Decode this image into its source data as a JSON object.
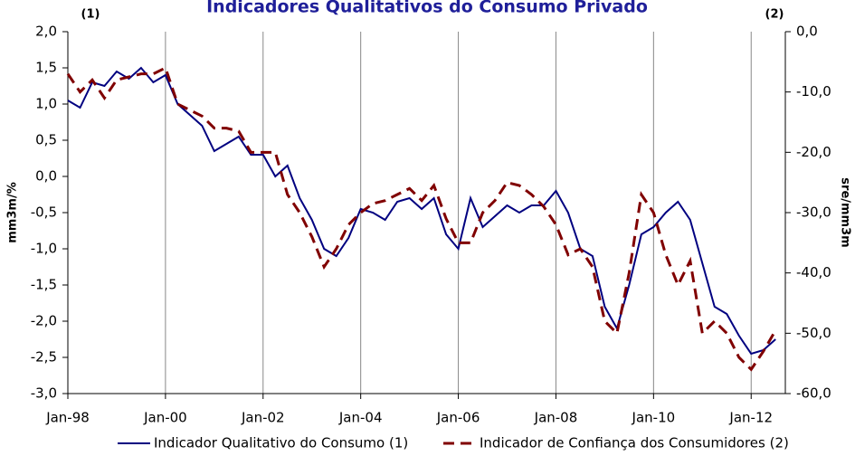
{
  "chart_data": {
    "type": "line",
    "title": "Indicadores Qualitativos do Consumo Privado",
    "annotations": [
      "(1)",
      "(2)"
    ],
    "ylabel": "mm3m/%",
    "y2label": "sre/mm3m",
    "x": [
      1998.0,
      1998.25,
      1998.5,
      1998.75,
      1999.0,
      1999.25,
      1999.5,
      1999.75,
      2000.0,
      2000.25,
      2000.5,
      2000.75,
      2001.0,
      2001.25,
      2001.5,
      2001.75,
      2002.0,
      2002.25,
      2002.5,
      2002.75,
      2003.0,
      2003.25,
      2003.5,
      2003.75,
      2004.0,
      2004.25,
      2004.5,
      2004.75,
      2005.0,
      2005.25,
      2005.5,
      2005.75,
      2006.0,
      2006.25,
      2006.5,
      2006.75,
      2007.0,
      2007.25,
      2007.5,
      2007.75,
      2008.0,
      2008.25,
      2008.5,
      2008.75,
      2009.0,
      2009.25,
      2009.5,
      2009.75,
      2010.0,
      2010.25,
      2010.5,
      2010.75,
      2011.0,
      2011.25,
      2011.5,
      2011.75,
      2012.0,
      2012.25,
      2012.5
    ],
    "series": [
      {
        "name": "Indicador Qualitativo do Consumo (1)",
        "color": "#000080",
        "axis": "y",
        "dash": false,
        "values": [
          1.05,
          0.95,
          1.3,
          1.25,
          1.45,
          1.35,
          1.5,
          1.3,
          1.4,
          1.0,
          0.85,
          0.7,
          0.35,
          0.45,
          0.55,
          0.3,
          0.3,
          0.0,
          0.15,
          -0.3,
          -0.6,
          -1.0,
          -1.1,
          -0.85,
          -0.45,
          -0.5,
          -0.6,
          -0.35,
          -0.3,
          -0.45,
          -0.3,
          -0.8,
          -1.0,
          -0.3,
          -0.7,
          -0.55,
          -0.4,
          -0.5,
          -0.4,
          -0.4,
          -0.2,
          -0.5,
          -1.0,
          -1.1,
          -1.8,
          -2.1,
          -1.5,
          -0.8,
          -0.7,
          -0.5,
          -0.35,
          -0.6,
          -1.2,
          -1.8,
          -1.9,
          -2.2,
          -2.45,
          -2.4,
          -2.25
        ]
      },
      {
        "name": "Indicador de Confiança dos Consumidores (2)",
        "color": "#800000",
        "axis": "y2",
        "dash": true,
        "values": [
          -7,
          -10,
          -8,
          -11,
          -8,
          -7.5,
          -7,
          -7,
          -6,
          -12,
          -13,
          -14,
          -16,
          -16,
          -16.5,
          -20,
          -20,
          -20,
          -27,
          -30,
          -34,
          -39,
          -36,
          -32,
          -30,
          -28.5,
          -28,
          -27,
          -26,
          -28,
          -25.5,
          -31,
          -35,
          -35,
          -30,
          -28,
          -25,
          -25.5,
          -27,
          -29,
          -32,
          -37,
          -36,
          -39,
          -48,
          -50,
          -40,
          -27,
          -30,
          -37,
          -42,
          -38,
          -50,
          -48,
          -50,
          -54,
          -56,
          -53,
          -49.5
        ]
      }
    ],
    "xlim": [
      1998,
      2012.7
    ],
    "xticks": [
      {
        "value": 1998,
        "label": "Jan-98"
      },
      {
        "value": 2000,
        "label": "Jan-00"
      },
      {
        "value": 2002,
        "label": "Jan-02"
      },
      {
        "value": 2004,
        "label": "Jan-04"
      },
      {
        "value": 2006,
        "label": "Jan-06"
      },
      {
        "value": 2008,
        "label": "Jan-08"
      },
      {
        "value": 2010,
        "label": "Jan-10"
      },
      {
        "value": 2012,
        "label": "Jan-12"
      }
    ],
    "ylim": [
      -3,
      2
    ],
    "yticks": [
      {
        "value": -3,
        "label": "-3,0"
      },
      {
        "value": -2.5,
        "label": "-2,5"
      },
      {
        "value": -2,
        "label": "-2,0"
      },
      {
        "value": -1.5,
        "label": "-1,5"
      },
      {
        "value": -1,
        "label": "-1,0"
      },
      {
        "value": -0.5,
        "label": "-0,5"
      },
      {
        "value": 0,
        "label": "0,0"
      },
      {
        "value": 0.5,
        "label": "0,5"
      },
      {
        "value": 1,
        "label": "1,0"
      },
      {
        "value": 1.5,
        "label": "1,5"
      },
      {
        "value": 2,
        "label": "2,0"
      }
    ],
    "y2lim": [
      -60,
      0
    ],
    "y2ticks": [
      {
        "value": -60,
        "label": "-60,0"
      },
      {
        "value": -50,
        "label": "-50,0"
      },
      {
        "value": -40,
        "label": "-40,0"
      },
      {
        "value": -30,
        "label": "-30,0"
      },
      {
        "value": -20,
        "label": "-20,0"
      },
      {
        "value": -10,
        "label": "-10,0"
      },
      {
        "value": 0,
        "label": "0,0"
      }
    ],
    "grid": "x",
    "legend": "bottom"
  }
}
